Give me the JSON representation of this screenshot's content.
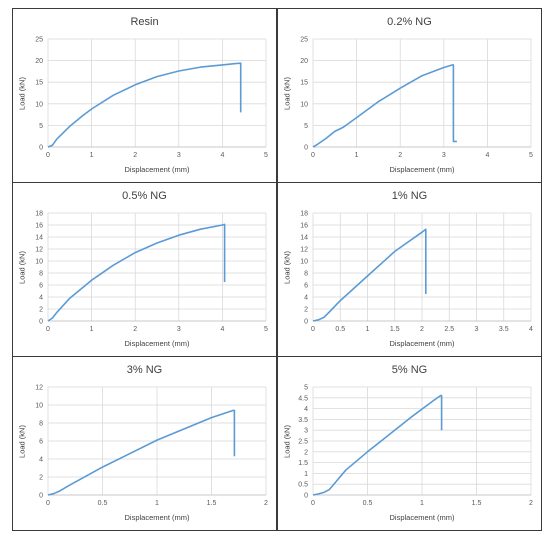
{
  "chart_data": [
    {
      "type": "line",
      "title": "Resin",
      "xlabel": "Displacement (mm)",
      "ylabel": "Load (kN)",
      "xlim": [
        0,
        5
      ],
      "ylim": [
        0,
        25
      ],
      "xticks": [
        "0",
        "1",
        "2",
        "3",
        "4",
        "5"
      ],
      "yticks": [
        "0",
        "5",
        "10",
        "15",
        "20",
        "25"
      ],
      "grid": true,
      "color": "#5b9bd5",
      "series": [
        {
          "x": [
            0,
            0.1,
            0.2,
            0.5,
            0.8,
            1.0,
            1.5,
            2.0,
            2.5,
            3.0,
            3.5,
            4.0,
            4.3,
            4.42,
            4.42
          ],
          "y": [
            0,
            0.4,
            1.8,
            4.8,
            7.3,
            8.8,
            12.0,
            14.4,
            16.3,
            17.6,
            18.5,
            19.0,
            19.3,
            19.4,
            8.0
          ]
        }
      ]
    },
    {
      "type": "line",
      "title": "0.2% NG",
      "xlabel": "Displacement (mm)",
      "ylabel": "Load (kN)",
      "xlim": [
        0,
        5
      ],
      "ylim": [
        0,
        25
      ],
      "xticks": [
        "0",
        "1",
        "2",
        "3",
        "4",
        "5"
      ],
      "yticks": [
        "0",
        "5",
        "10",
        "15",
        "20",
        "25"
      ],
      "grid": true,
      "color": "#5b9bd5",
      "series": [
        {
          "x": [
            0,
            0.1,
            0.3,
            0.5,
            0.7,
            1.0,
            1.5,
            2.0,
            2.5,
            3.0,
            3.2,
            3.22,
            3.22,
            3.3
          ],
          "y": [
            0,
            0.6,
            2.0,
            3.6,
            4.6,
            6.8,
            10.5,
            13.6,
            16.5,
            18.4,
            19.0,
            19.0,
            1.3,
            1.3
          ]
        }
      ]
    },
    {
      "type": "line",
      "title": "0.5% NG",
      "xlabel": "Displacement (mm)",
      "ylabel": "Load (kN)",
      "xlim": [
        0,
        5
      ],
      "ylim": [
        0,
        18
      ],
      "xticks": [
        "0",
        "1",
        "2",
        "3",
        "4",
        "5"
      ],
      "yticks": [
        "0",
        "2",
        "4",
        "6",
        "8",
        "10",
        "12",
        "14",
        "16",
        "18"
      ],
      "grid": true,
      "color": "#5b9bd5",
      "series": [
        {
          "x": [
            0,
            0.1,
            0.2,
            0.5,
            1.0,
            1.5,
            2.0,
            2.5,
            3.0,
            3.5,
            4.0,
            4.05,
            4.05
          ],
          "y": [
            0,
            0.5,
            1.4,
            3.8,
            6.8,
            9.3,
            11.4,
            13.0,
            14.3,
            15.3,
            16.0,
            16.1,
            6.5
          ]
        }
      ]
    },
    {
      "type": "line",
      "title": "1% NG",
      "xlabel": "Displacement (mm)",
      "ylabel": "Load (kN)",
      "xlim": [
        0,
        4
      ],
      "ylim": [
        0,
        18
      ],
      "xticks": [
        "0",
        "0.5",
        "1",
        "1.5",
        "2",
        "2.5",
        "3",
        "3.5",
        "4"
      ],
      "yticks": [
        "0",
        "2",
        "4",
        "6",
        "8",
        "10",
        "12",
        "14",
        "16",
        "18"
      ],
      "grid": true,
      "color": "#5b9bd5",
      "series": [
        {
          "x": [
            0,
            0.1,
            0.2,
            0.3,
            0.5,
            1.0,
            1.5,
            2.0,
            2.07,
            2.07
          ],
          "y": [
            0,
            0.2,
            0.6,
            1.5,
            3.4,
            7.5,
            11.6,
            14.8,
            15.3,
            4.5
          ]
        }
      ]
    },
    {
      "type": "line",
      "title": "3% NG",
      "xlabel": "Displacement (mm)",
      "ylabel": "Load (kN)",
      "xlim": [
        0,
        2
      ],
      "ylim": [
        0,
        12
      ],
      "xticks": [
        "0",
        "0.5",
        "1",
        "1.5",
        "2"
      ],
      "yticks": [
        "0",
        "2",
        "4",
        "6",
        "8",
        "10",
        "12"
      ],
      "grid": true,
      "color": "#5b9bd5",
      "series": [
        {
          "x": [
            0,
            0.05,
            0.1,
            0.2,
            0.5,
            1.0,
            1.5,
            1.7,
            1.71,
            1.71
          ],
          "y": [
            0,
            0.15,
            0.4,
            1.1,
            3.1,
            6.1,
            8.6,
            9.4,
            9.4,
            4.3
          ]
        }
      ]
    },
    {
      "type": "line",
      "title": "5% NG",
      "xlabel": "Displacement (mm)",
      "ylabel": "Load (kN)",
      "xlim": [
        0,
        2
      ],
      "ylim": [
        0,
        5
      ],
      "xticks": [
        "0",
        "0.5",
        "1",
        "1.5",
        "2"
      ],
      "yticks": [
        "0",
        "0.5",
        "1",
        "1.5",
        "2",
        "2.5",
        "3",
        "3.5",
        "4",
        "4.5",
        "5"
      ],
      "grid": true,
      "color": "#5b9bd5",
      "series": [
        {
          "x": [
            0,
            0.05,
            0.1,
            0.15,
            0.2,
            0.3,
            0.5,
            0.7,
            0.9,
            1.1,
            1.17,
            1.18,
            1.18
          ],
          "y": [
            0,
            0.05,
            0.12,
            0.25,
            0.55,
            1.15,
            2.0,
            2.8,
            3.6,
            4.35,
            4.6,
            4.6,
            3.0
          ]
        }
      ]
    }
  ]
}
